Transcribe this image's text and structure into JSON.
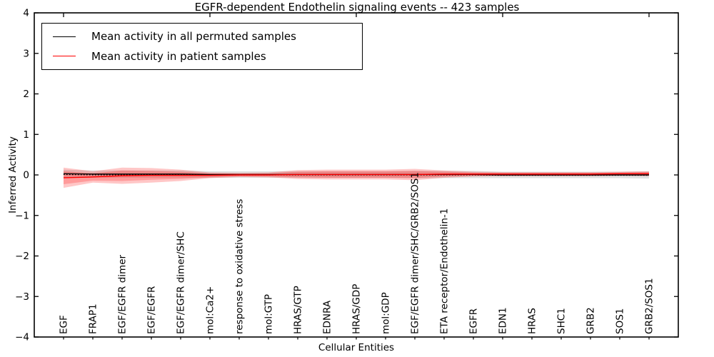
{
  "figure": {
    "title": "EGFR-dependent Endothelin signaling events -- 423 samples",
    "background": "#ffffff"
  },
  "legend": {
    "items": [
      {
        "label": "Mean activity in all permuted samples",
        "color": "#000000"
      },
      {
        "label": "Mean activity in patient samples",
        "color": "#ff0000"
      }
    ]
  },
  "chart_data": {
    "type": "line",
    "title": "EGFR-dependent Endothelin signaling events -- 423 samples",
    "xlabel": "Cellular Entities",
    "ylabel": "Inferred Activity",
    "ylim": [
      -4,
      4
    ],
    "yticks": [
      4,
      3,
      2,
      1,
      0,
      -1,
      -2,
      -3,
      -4
    ],
    "grid": false,
    "legend_position": "upper left",
    "categories": [
      "EGF",
      "FRAP1",
      "EGF/EGFR dimer",
      "EGF/EGFR",
      "EGF/EGFR dimer/SHC",
      "mol:Ca2+",
      "response to oxidative stress",
      "mol:GTP",
      "HRAS/GTP",
      "EDNRA",
      "HRAS/GDP",
      "mol:GDP",
      "EGF/EGFR dimer/SHC/GRB2/SOS1",
      "ETA receptor/Endothelin-1",
      "EGFR",
      "EDN1",
      "HRAS",
      "SHC1",
      "GRB2",
      "SOS1",
      "GRB2/SOS1"
    ],
    "series": [
      {
        "name": "Mean activity in all permuted samples",
        "color": "#000000",
        "style": "solid",
        "values": [
          0.03,
          0.02,
          0.02,
          0.02,
          0.02,
          0.01,
          0.01,
          0.01,
          0.01,
          0.01,
          0.01,
          0.01,
          0.01,
          0.01,
          0.01,
          0.0,
          0.0,
          0.0,
          0.0,
          0.0,
          0.0
        ]
      },
      {
        "name": "zero baseline (dotted)",
        "color": "#000000",
        "style": "dotted",
        "values": [
          0.01,
          0.0,
          0.0,
          0.0,
          0.0,
          0.0,
          0.0,
          0.0,
          0.0,
          0.0,
          0.0,
          0.0,
          0.0,
          0.0,
          0.0,
          -0.01,
          -0.01,
          -0.01,
          -0.01,
          -0.01,
          -0.01
        ]
      },
      {
        "name": "Mean activity in patient samples",
        "color": "#ff0000",
        "style": "solid",
        "values": [
          -0.07,
          -0.05,
          -0.02,
          -0.01,
          -0.01,
          -0.01,
          0.0,
          0.0,
          0.01,
          0.01,
          0.01,
          0.01,
          0.01,
          0.02,
          0.02,
          0.02,
          0.02,
          0.02,
          0.02,
          0.03,
          0.03
        ]
      }
    ],
    "bands": [
      {
        "name": "permuted samples spread",
        "color": "#999999",
        "alpha": 0.3,
        "upper": [
          0.13,
          0.11,
          0.11,
          0.11,
          0.11,
          0.09,
          0.09,
          0.09,
          0.09,
          0.09,
          0.09,
          0.09,
          0.1,
          0.1,
          0.1,
          0.08,
          0.08,
          0.08,
          0.08,
          0.08,
          0.09
        ],
        "lower": [
          -0.07,
          -0.07,
          -0.07,
          -0.07,
          -0.07,
          -0.07,
          -0.07,
          -0.07,
          -0.07,
          -0.07,
          -0.07,
          -0.07,
          -0.08,
          -0.08,
          -0.08,
          -0.08,
          -0.08,
          -0.08,
          -0.08,
          -0.08,
          -0.09
        ]
      },
      {
        "name": "patient samples spread (outer)",
        "color": "#ff0000",
        "alpha": 0.22,
        "upper": [
          0.18,
          0.09,
          0.18,
          0.17,
          0.13,
          0.06,
          0.05,
          0.06,
          0.12,
          0.13,
          0.13,
          0.13,
          0.15,
          0.11,
          0.08,
          0.07,
          0.07,
          0.07,
          0.07,
          0.08,
          0.09
        ],
        "lower": [
          -0.32,
          -0.19,
          -0.22,
          -0.19,
          -0.15,
          -0.08,
          -0.05,
          -0.06,
          -0.1,
          -0.11,
          -0.11,
          -0.11,
          -0.13,
          -0.07,
          -0.04,
          -0.03,
          -0.03,
          -0.03,
          -0.03,
          -0.02,
          -0.03
        ]
      },
      {
        "name": "patient samples spread (inner)",
        "color": "#ff0000",
        "alpha": 0.22,
        "upper": [
          0.09,
          0.04,
          0.11,
          0.1,
          0.08,
          0.04,
          0.035,
          0.04,
          0.08,
          0.09,
          0.09,
          0.09,
          0.1,
          0.08,
          0.06,
          0.05,
          0.05,
          0.05,
          0.05,
          0.06,
          0.07
        ],
        "lower": [
          -0.23,
          -0.14,
          -0.15,
          -0.12,
          -0.1,
          -0.06,
          -0.035,
          -0.04,
          -0.06,
          -0.07,
          -0.07,
          -0.07,
          -0.08,
          -0.04,
          -0.02,
          -0.01,
          -0.01,
          -0.01,
          -0.01,
          0.0,
          -0.01
        ]
      }
    ]
  }
}
